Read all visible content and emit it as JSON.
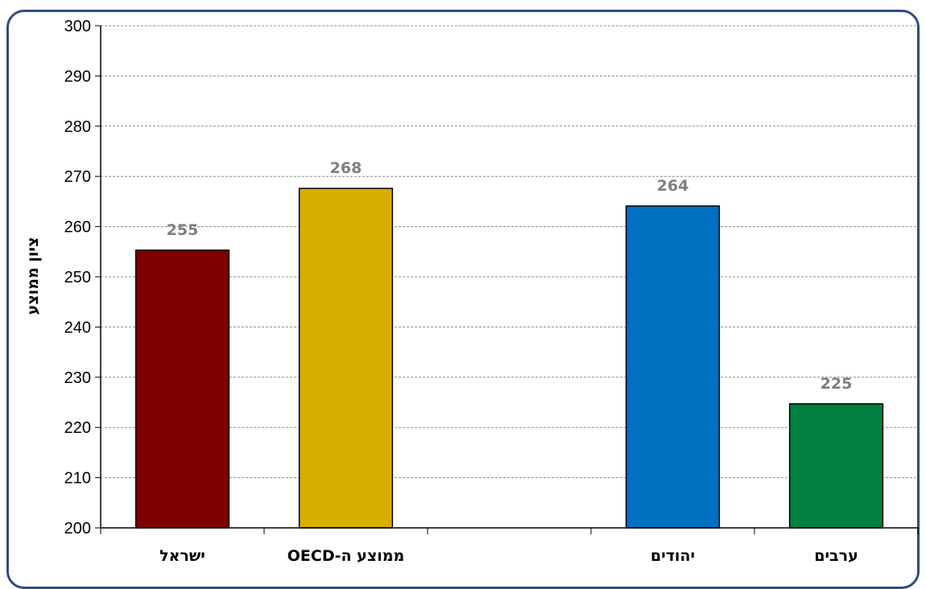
{
  "chart_data": {
    "type": "bar",
    "categories": [
      "ישראל",
      "ממוצע ה-OECD",
      "",
      "יהודים",
      "ערבים"
    ],
    "values": [
      255.3,
      267.6,
      null,
      264.1,
      224.7
    ],
    "data_labels": [
      "255",
      "268",
      "",
      "264",
      "225"
    ],
    "colors": [
      "#7f0000",
      "#d8ae00",
      null,
      "#0070c0",
      "#008040"
    ],
    "ylabel": "ציון ממוצע",
    "xlabel": "",
    "ylim": [
      200,
      300
    ],
    "yticks": [
      "200",
      "210",
      "220",
      "230",
      "240",
      "250",
      "260",
      "270",
      "280",
      "290",
      "300"
    ],
    "grid": true
  }
}
